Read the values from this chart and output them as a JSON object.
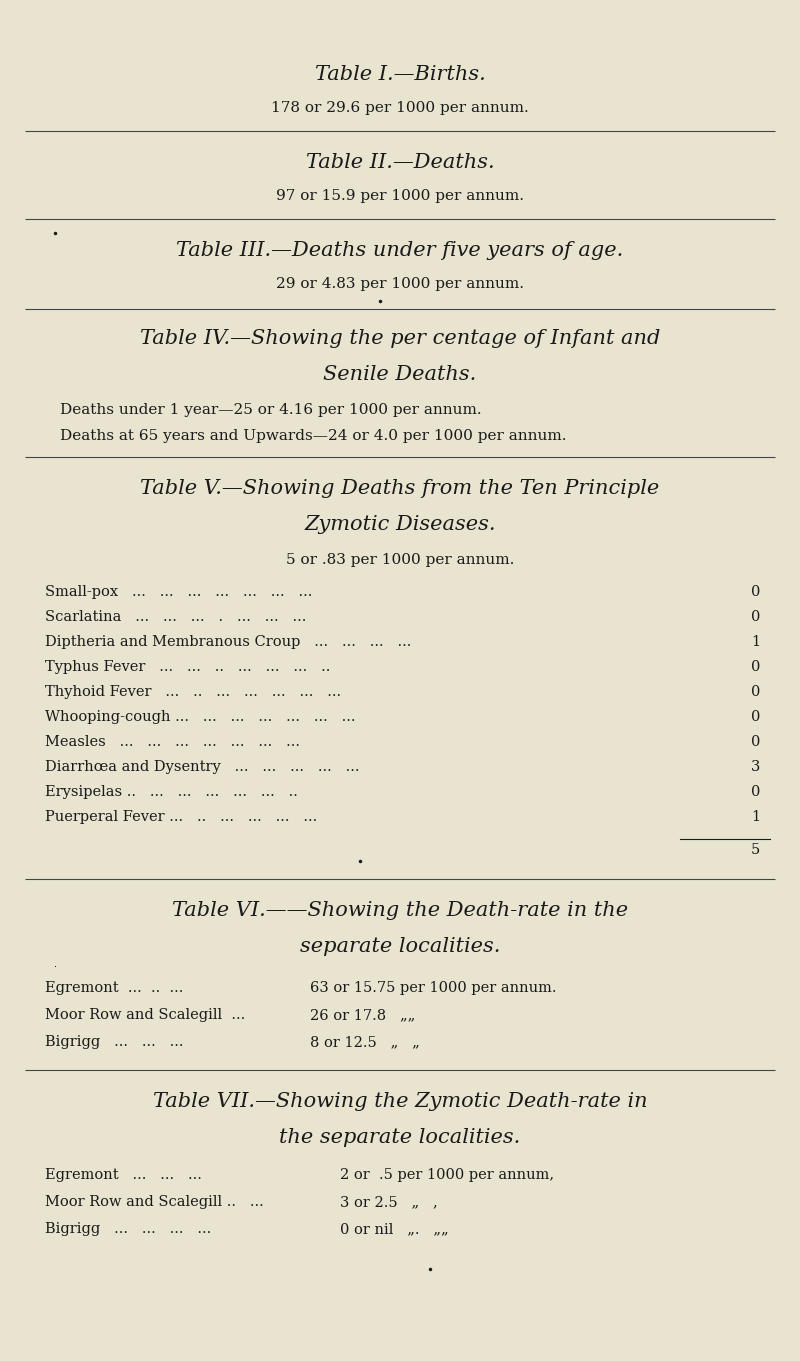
{
  "bg_color": "#e8e4d0",
  "text_color": "#1a1a1a",
  "fig_width": 8.0,
  "fig_height": 13.61,
  "dpi": 100,
  "sections": [
    {
      "id": "table1",
      "title": "Table I.—Births.",
      "subtitle": "178 or 29.6 per 1000 per annum."
    },
    {
      "id": "table2",
      "title": "Table II.—Deaths.",
      "subtitle": "97 or 15.9 per 1000 per annum."
    },
    {
      "id": "table3",
      "title": "Table III.—Deaths under five years of age.",
      "subtitle": "29 or 4.83 per 1000 per annum.",
      "has_bullet": true
    },
    {
      "id": "table4",
      "title_line1": "Table IV.—Showing the per centage of Infant and",
      "title_line2": "Senile Deaths.",
      "lines": [
        "Deaths under 1 year—25 or 4.16 per 1000 per annum.",
        "Deaths at 65 years and Upwards—24 or 4.0 per 1000 per annum."
      ]
    },
    {
      "id": "table5",
      "title_line1": "Table V.—Showing Deaths from the Ten Principle",
      "title_line2": "Zymotic Diseases.",
      "subtitle": "5 or .83 per 1000 per annum.",
      "diseases": [
        [
          "Small-pox   ...   ...   ...   ...   ...   ...   ...",
          "0"
        ],
        [
          "Scarlatina   ...   ...   ...   .   ...   ...   ...",
          "0"
        ],
        [
          "Diptheria and Membranous Croup   ...   ...   ...   ...",
          "1"
        ],
        [
          "Typhus Fever   ...   ...   ..   ...   ...   ...   ..",
          "0"
        ],
        [
          "Thyhoid Fever   ...   ..   ...   ...   ...   ...   ...",
          "0"
        ],
        [
          "Whooping-cough ...   ...   ...   ...   ...   ...   ...",
          "0"
        ],
        [
          "Measles   ...   ...   ...   ...   ...   ...   ...",
          "0"
        ],
        [
          "Diarrhœa and Dysentry   ...   ...   ...   ...   ...",
          "3"
        ],
        [
          "Erysipelas ..   ...   ...   ...   ...   ...   ..",
          "0"
        ],
        [
          "Puerperal Fever ...   ..   ...   ...   ...   ...",
          "1"
        ]
      ],
      "total": "5"
    },
    {
      "id": "table6",
      "title_line1": "Table VI.——Showing the Death-rate in the",
      "title_line2": "separate localities.",
      "has_bullet": true,
      "localities": [
        [
          "Egremont  ...  ..  ...",
          "63 or 15.75 per 1000 per annum."
        ],
        [
          "Moor Row and Scalegill  ...",
          "26 or 17.8   „„"
        ],
        [
          "Bigrigg   ...   ...   ...",
          "8 or 12.5   „   „"
        ]
      ]
    },
    {
      "id": "table7",
      "title_line1": "Table VII.—Showing the Zymotic Death-rate in",
      "title_line2": "the separate localities.",
      "localities": [
        [
          "Egremont   ...   ...   ...",
          "2 or  .5 per 1000 per annum,"
        ],
        [
          "Moor Row and Scalegill ..   ...",
          "3 or 2.5   „   ,"
        ],
        [
          "Bigrigg   ...   ...   ...   ...",
          "0 or nil   „.   „„"
        ]
      ]
    }
  ]
}
